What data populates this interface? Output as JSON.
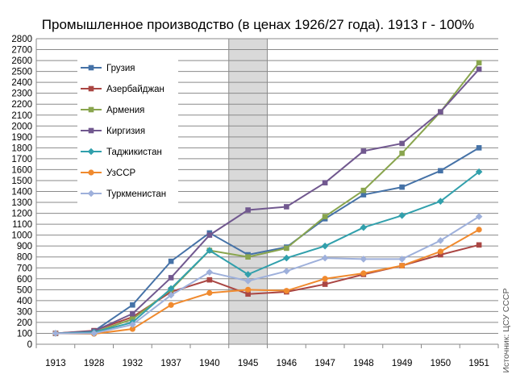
{
  "chart_data": {
    "type": "line",
    "title": "Промышленное производство (в ценах 1926/27 года). 1913 г - 100%",
    "source": "Источник: ЦСУ СССР",
    "categories": [
      "1913",
      "1928",
      "1932",
      "1937",
      "1940",
      "1945",
      "1946",
      "1947",
      "1948",
      "1949",
      "1950",
      "1951"
    ],
    "ylim": [
      0,
      2800
    ],
    "yticks": [
      0,
      100,
      200,
      300,
      400,
      500,
      600,
      700,
      800,
      900,
      1000,
      1100,
      1200,
      1300,
      1400,
      1500,
      1600,
      1700,
      1800,
      1900,
      2000,
      2100,
      2200,
      2300,
      2400,
      2500,
      2600,
      2700,
      2800
    ],
    "grid": true,
    "highlight_category": "1945",
    "legend_position": "top-left",
    "series": [
      {
        "name": "Грузия",
        "color": "#4572a7",
        "marker": "square",
        "values": [
          100,
          120,
          360,
          760,
          1020,
          820,
          890,
          1150,
          1370,
          1440,
          1590,
          1800
        ]
      },
      {
        "name": "Азербайджан",
        "color": "#aa4643",
        "marker": "square",
        "values": [
          100,
          125,
          250,
          480,
          590,
          460,
          480,
          550,
          640,
          720,
          820,
          910
        ]
      },
      {
        "name": "Армения",
        "color": "#89a54e",
        "marker": "square",
        "values": [
          100,
          110,
          230,
          500,
          860,
          800,
          880,
          1170,
          1410,
          1750,
          2130,
          2580
        ]
      },
      {
        "name": "Киргизия",
        "color": "#71588f",
        "marker": "square",
        "values": [
          100,
          120,
          280,
          610,
          1000,
          1230,
          1260,
          1480,
          1770,
          1840,
          2130,
          2520
        ]
      },
      {
        "name": "Таджикистан",
        "color": "#31a0ac",
        "marker": "diamond",
        "values": [
          100,
          110,
          200,
          510,
          860,
          640,
          790,
          900,
          1070,
          1180,
          1310,
          1580
        ]
      },
      {
        "name": "УзССР",
        "color": "#f08a2e",
        "marker": "circle",
        "values": [
          100,
          95,
          140,
          360,
          470,
          500,
          490,
          600,
          650,
          720,
          850,
          1050
        ]
      },
      {
        "name": "Туркменистан",
        "color": "#9eb0db",
        "marker": "diamond",
        "values": [
          100,
          100,
          180,
          450,
          660,
          580,
          670,
          790,
          780,
          780,
          950,
          1170
        ]
      }
    ]
  }
}
